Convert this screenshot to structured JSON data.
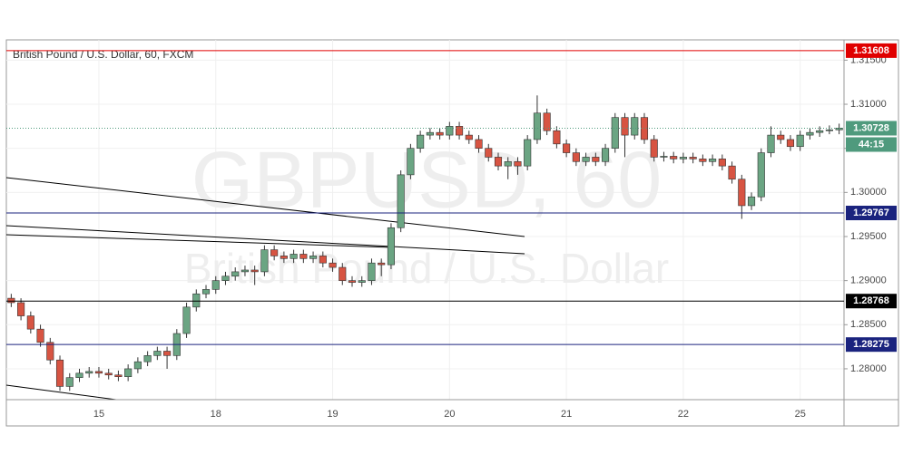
{
  "chart_data": {
    "type": "candlestick",
    "title": "British Pound / U.S. Dollar, 60, FXCM",
    "watermark": "GBPUSD, 60",
    "watermark_subtitle": "British Pound / U.S. Dollar",
    "categories": [
      null,
      null,
      null,
      null,
      null,
      null,
      null,
      null,
      null,
      "15",
      null,
      null,
      null,
      null,
      null,
      null,
      null,
      null,
      null,
      null,
      null,
      "18",
      null,
      null,
      null,
      null,
      null,
      null,
      null,
      null,
      null,
      null,
      null,
      "19",
      null,
      null,
      null,
      null,
      null,
      null,
      null,
      null,
      null,
      null,
      null,
      "20",
      null,
      null,
      null,
      null,
      null,
      null,
      null,
      null,
      null,
      null,
      null,
      "21",
      null,
      null,
      null,
      null,
      null,
      null,
      null,
      null,
      null,
      null,
      null,
      "22",
      null,
      null,
      null,
      null,
      null,
      null,
      null,
      null,
      null,
      null,
      null,
      "25",
      null,
      null,
      null,
      null
    ],
    "open": [
      1.288,
      1.2875,
      1.286,
      1.2845,
      1.283,
      1.281,
      1.278,
      1.279,
      1.2795,
      1.2797,
      1.2795,
      1.2793,
      1.2791,
      1.28,
      1.2808,
      1.2815,
      1.282,
      1.2815,
      1.284,
      1.287,
      1.2885,
      1.289,
      1.29,
      1.2905,
      1.291,
      1.2912,
      1.291,
      1.2935,
      1.2928,
      1.2925,
      1.293,
      1.2925,
      1.2928,
      1.292,
      1.2915,
      1.29,
      1.2898,
      1.29,
      1.292,
      1.2918,
      1.296,
      1.302,
      1.305,
      1.3065,
      1.3068,
      1.3065,
      1.3075,
      1.3065,
      1.306,
      1.305,
      1.304,
      1.303,
      1.3035,
      1.303,
      1.306,
      1.309,
      1.307,
      1.3055,
      1.3045,
      1.3035,
      1.304,
      1.3035,
      1.305,
      1.3085,
      1.3065,
      1.3085,
      1.306,
      1.304,
      1.3041,
      1.3038,
      1.304,
      1.3038,
      1.3035,
      1.3038,
      1.303,
      1.3015,
      1.2985,
      1.2995,
      1.3045,
      1.3065,
      1.306,
      1.3052,
      1.3065,
      1.3068,
      1.307,
      1.3071
    ],
    "high": [
      1.2885,
      1.288,
      1.2865,
      1.285,
      1.2835,
      1.2815,
      1.2795,
      1.28,
      1.2802,
      1.2802,
      1.28,
      1.2798,
      1.2805,
      1.2813,
      1.282,
      1.2825,
      1.2825,
      1.2845,
      1.2875,
      1.289,
      1.2895,
      1.2905,
      1.291,
      1.2915,
      1.2917,
      1.2917,
      1.294,
      1.294,
      1.2933,
      1.2935,
      1.2935,
      1.2933,
      1.2933,
      1.2925,
      1.292,
      1.2905,
      1.2905,
      1.2925,
      1.2925,
      1.2965,
      1.3025,
      1.3055,
      1.307,
      1.3073,
      1.3073,
      1.308,
      1.308,
      1.307,
      1.3065,
      1.3055,
      1.3045,
      1.304,
      1.304,
      1.3065,
      1.311,
      1.3095,
      1.3075,
      1.306,
      1.305,
      1.3045,
      1.3045,
      1.3055,
      1.309,
      1.309,
      1.309,
      1.309,
      1.3065,
      1.3046,
      1.3046,
      1.3045,
      1.3045,
      1.3043,
      1.3043,
      1.3043,
      1.3035,
      1.302,
      1.3,
      1.305,
      1.3075,
      1.307,
      1.3065,
      1.307,
      1.3073,
      1.3075,
      1.3076,
      1.3078
    ],
    "low": [
      1.287,
      1.2855,
      1.284,
      1.2825,
      1.2805,
      1.2775,
      1.2775,
      1.2785,
      1.279,
      1.279,
      1.2788,
      1.2786,
      1.2786,
      1.2795,
      1.2803,
      1.281,
      1.28,
      1.281,
      1.2835,
      1.2865,
      1.288,
      1.2885,
      1.2895,
      1.29,
      1.2905,
      1.2895,
      1.2905,
      1.2923,
      1.292,
      1.292,
      1.292,
      1.292,
      1.2915,
      1.291,
      1.2895,
      1.2893,
      1.2893,
      1.2895,
      1.2905,
      1.2913,
      1.2955,
      1.3015,
      1.3045,
      1.306,
      1.306,
      1.306,
      1.306,
      1.3055,
      1.3045,
      1.3035,
      1.3025,
      1.3015,
      1.302,
      1.3025,
      1.3055,
      1.3065,
      1.305,
      1.304,
      1.303,
      1.303,
      1.303,
      1.303,
      1.3045,
      1.304,
      1.306,
      1.3055,
      1.3035,
      1.3035,
      1.3033,
      1.3033,
      1.3033,
      1.303,
      1.303,
      1.3025,
      1.301,
      1.297,
      1.298,
      1.299,
      1.304,
      1.3055,
      1.3047,
      1.3047,
      1.306,
      1.3063,
      1.3066,
      1.3066
    ],
    "close": [
      1.2875,
      1.286,
      1.2845,
      1.283,
      1.281,
      1.278,
      1.279,
      1.2795,
      1.2797,
      1.2795,
      1.2793,
      1.2791,
      1.28,
      1.2808,
      1.2815,
      1.282,
      1.2815,
      1.284,
      1.287,
      1.2885,
      1.289,
      1.29,
      1.2905,
      1.291,
      1.2912,
      1.291,
      1.2935,
      1.2928,
      1.2925,
      1.293,
      1.2925,
      1.2928,
      1.292,
      1.2915,
      1.29,
      1.2898,
      1.29,
      1.292,
      1.2918,
      1.296,
      1.302,
      1.305,
      1.3065,
      1.3068,
      1.3065,
      1.3075,
      1.3065,
      1.306,
      1.305,
      1.304,
      1.303,
      1.3035,
      1.303,
      1.306,
      1.309,
      1.307,
      1.3055,
      1.3045,
      1.3035,
      1.304,
      1.3035,
      1.305,
      1.3085,
      1.3065,
      1.3085,
      1.306,
      1.304,
      1.3041,
      1.3038,
      1.304,
      1.3038,
      1.3035,
      1.3038,
      1.303,
      1.3015,
      1.2985,
      1.2995,
      1.3045,
      1.3065,
      1.306,
      1.3052,
      1.3065,
      1.3068,
      1.307,
      1.3071,
      1.3073
    ],
    "up_color": "#6ba583",
    "down_color": "#d75442",
    "ylim": [
      1.2765,
      1.3173
    ],
    "yticks": [
      {
        "value": 1.28,
        "label": "1.28000"
      },
      {
        "value": 1.285,
        "label": "1.28500"
      },
      {
        "value": 1.29,
        "label": "1.29000"
      },
      {
        "value": 1.295,
        "label": "1.29500"
      },
      {
        "value": 1.3,
        "label": "1.30000"
      },
      {
        "value": 1.305,
        "label": "1.30500"
      },
      {
        "value": 1.31,
        "label": "1.31000"
      },
      {
        "value": 1.315,
        "label": "1.31500"
      }
    ],
    "grid": true,
    "levels": [
      {
        "value": 1.31608,
        "color": "#e00000"
      },
      {
        "value": 1.29767,
        "color": "#1a237e"
      },
      {
        "value": 1.28768,
        "color": "#000000"
      },
      {
        "value": 1.28275,
        "color": "#1a237e"
      }
    ],
    "current_price": {
      "value": 1.30728,
      "color": "#4f9a7d",
      "countdown": "44:15"
    }
  }
}
